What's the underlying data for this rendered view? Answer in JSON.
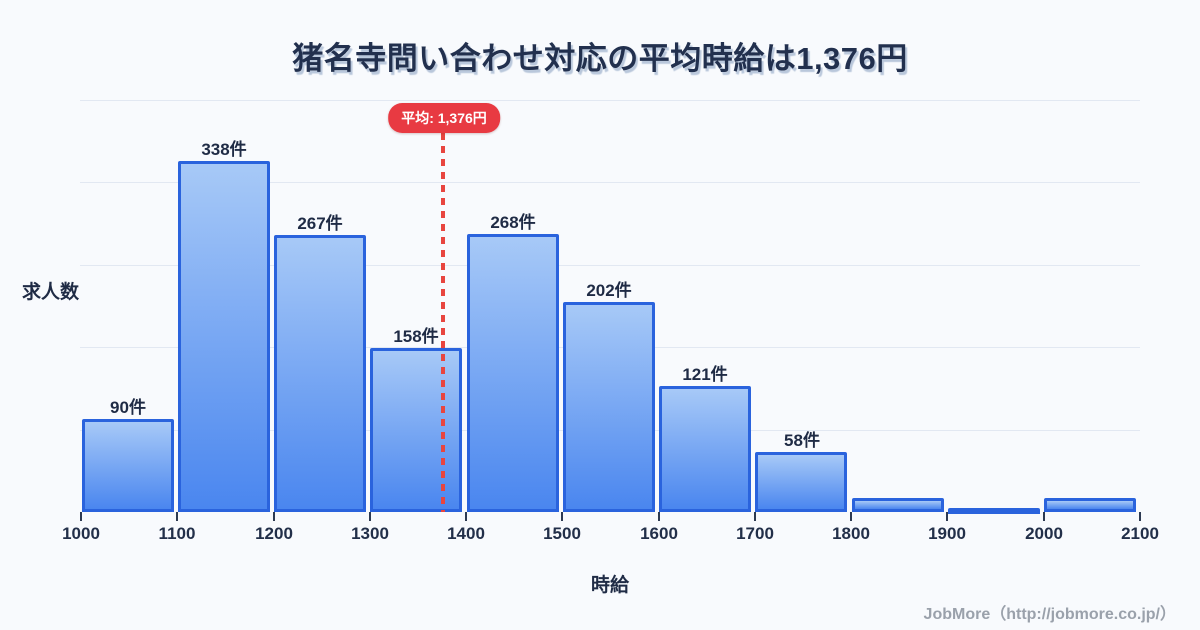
{
  "title": "猪名寺問い合わせ対応の平均時給は1,376円",
  "footer": {
    "credit": "JobMore（http://jobmore.co.jp/）"
  },
  "colors": {
    "background": "#f8fafd",
    "title_text": "#22304e",
    "title_shadow": "#b9c7db",
    "bar_fill_top": "#a7c9f7",
    "bar_fill_bottom": "#4a86ef",
    "bar_border": "#2a63dd",
    "grid_line": "#e2e8f2",
    "tick_mark": "#2d3a52",
    "label_text": "#1f2b45",
    "average_red": "#e83a42",
    "average_line_red": "#e8453f",
    "footer_text": "#9aa1ab"
  },
  "chart_data": {
    "type": "bar",
    "subtype": "histogram",
    "title": "猪名寺問い合わせ対応の平均時給は1,376円",
    "xlabel": "時給",
    "ylabel": "求人数",
    "unit_suffix": "件",
    "bin_width": 100,
    "x_ticks": [
      "1000",
      "1100",
      "1200",
      "1300",
      "1400",
      "1500",
      "1600",
      "1700",
      "1800",
      "1900",
      "2000",
      "2100"
    ],
    "xlim": [
      1000,
      2100
    ],
    "ylim": [
      0,
      400
    ],
    "grid": "horizontal-faint",
    "legend": "none",
    "bins": [
      {
        "range": [
          1000,
          1100
        ],
        "value": 90,
        "label": "90件"
      },
      {
        "range": [
          1100,
          1200
        ],
        "value": 338,
        "label": "338件"
      },
      {
        "range": [
          1200,
          1300
        ],
        "value": 267,
        "label": "267件"
      },
      {
        "range": [
          1300,
          1400
        ],
        "value": 158,
        "label": "158件"
      },
      {
        "range": [
          1400,
          1500
        ],
        "value": 268,
        "label": "268件"
      },
      {
        "range": [
          1500,
          1600
        ],
        "value": 202,
        "label": "202件"
      },
      {
        "range": [
          1600,
          1700
        ],
        "value": 121,
        "label": "121件"
      },
      {
        "range": [
          1700,
          1800
        ],
        "value": 58,
        "label": "58件"
      },
      {
        "range": [
          1800,
          1900
        ],
        "value": 13,
        "label": ""
      },
      {
        "range": [
          1900,
          2000
        ],
        "value": 3,
        "label": ""
      },
      {
        "range": [
          2000,
          2100
        ],
        "value": 13,
        "label": ""
      }
    ],
    "average": {
      "value": 1376,
      "label": "平均: 1,376円"
    }
  }
}
